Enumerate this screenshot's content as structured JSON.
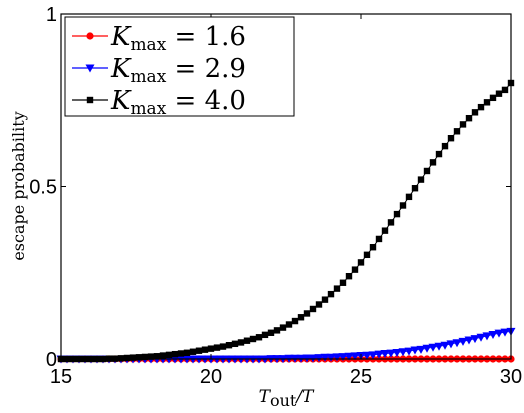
{
  "chart_data": {
    "type": "line",
    "xlabel": "T_out/T",
    "xlabel_main": "T",
    "xlabel_sub": "out",
    "xlabel_tail": "/T",
    "ylabel": "escape probability",
    "xlim": [
      15,
      30
    ],
    "ylim": [
      0,
      1
    ],
    "xticks": [
      "15",
      "20",
      "25",
      "30"
    ],
    "yticks": [
      "0",
      "0.5",
      "1"
    ],
    "grid": false,
    "legend_position": "top-left",
    "x": [
      15.0,
      15.2,
      15.4,
      15.6,
      15.8,
      16.0,
      16.2,
      16.4,
      16.6,
      16.8,
      17.0,
      17.2,
      17.4,
      17.6,
      17.8,
      18.0,
      18.2,
      18.4,
      18.6,
      18.8,
      19.0,
      19.2,
      19.4,
      19.6,
      19.8,
      20.0,
      20.2,
      20.4,
      20.6,
      20.8,
      21.0,
      21.2,
      21.4,
      21.6,
      21.8,
      22.0,
      22.2,
      22.4,
      22.6,
      22.8,
      23.0,
      23.2,
      23.4,
      23.6,
      23.8,
      24.0,
      24.2,
      24.4,
      24.6,
      24.8,
      25.0,
      25.2,
      25.4,
      25.6,
      25.8,
      26.0,
      26.2,
      26.4,
      26.6,
      26.8,
      27.0,
      27.2,
      27.4,
      27.6,
      27.8,
      28.0,
      28.2,
      28.4,
      28.6,
      28.8,
      29.0,
      29.2,
      29.4,
      29.6,
      29.8,
      30.0
    ],
    "series": [
      {
        "name": "K_max = 1.6",
        "name_main": "K",
        "name_sub": "max",
        "name_value": " = 1.6",
        "color": "#ff0000",
        "marker": "circle",
        "values": [
          0,
          0,
          0,
          0,
          0,
          0,
          0,
          0,
          0,
          0,
          0,
          0,
          0,
          0,
          0,
          0,
          0,
          0,
          0,
          0,
          0,
          0,
          0,
          0,
          0,
          0,
          0,
          0,
          0,
          0,
          0,
          0,
          0,
          0,
          0,
          0,
          0,
          0,
          0,
          0,
          0,
          0,
          0,
          0,
          0,
          0,
          0,
          0,
          0,
          0,
          0,
          0,
          0,
          0,
          0,
          0,
          0,
          0,
          0,
          0,
          0,
          0,
          0,
          0,
          0,
          0,
          0,
          0,
          0,
          0,
          0,
          0,
          0,
          0,
          0,
          0
        ]
      },
      {
        "name": "K_max = 2.9",
        "name_main": "K",
        "name_sub": "max",
        "name_value": " = 2.9",
        "color": "#0000ff",
        "marker": "triangle-down",
        "values": [
          0,
          0,
          0,
          0,
          0,
          0,
          0,
          0,
          0,
          0,
          0,
          0,
          0,
          0,
          0,
          0,
          0,
          0,
          0,
          0,
          0,
          0,
          0,
          0,
          0,
          0,
          0,
          0,
          0,
          0,
          0,
          0,
          0,
          0,
          0,
          0.001,
          0.001,
          0.001,
          0.002,
          0.002,
          0.002,
          0.003,
          0.003,
          0.004,
          0.005,
          0.005,
          0.006,
          0.007,
          0.008,
          0.009,
          0.01,
          0.011,
          0.012,
          0.014,
          0.016,
          0.017,
          0.019,
          0.021,
          0.023,
          0.026,
          0.028,
          0.031,
          0.034,
          0.037,
          0.04,
          0.044,
          0.047,
          0.051,
          0.055,
          0.059,
          0.063,
          0.067,
          0.071,
          0.075,
          0.078,
          0.08
        ]
      },
      {
        "name": "K_max = 4.0",
        "name_main": "K",
        "name_sub": "max",
        "name_value": " = 4.0",
        "color": "#000000",
        "marker": "square",
        "values": [
          0,
          0,
          0,
          0,
          0,
          0,
          0,
          0,
          0.001,
          0.001,
          0.002,
          0.003,
          0.004,
          0.005,
          0.006,
          0.007,
          0.008,
          0.01,
          0.012,
          0.014,
          0.016,
          0.018,
          0.021,
          0.024,
          0.027,
          0.03,
          0.033,
          0.036,
          0.04,
          0.044,
          0.048,
          0.053,
          0.058,
          0.063,
          0.07,
          0.076,
          0.083,
          0.091,
          0.1,
          0.11,
          0.121,
          0.132,
          0.145,
          0.158,
          0.172,
          0.188,
          0.204,
          0.221,
          0.24,
          0.259,
          0.28,
          0.302,
          0.324,
          0.348,
          0.372,
          0.396,
          0.42,
          0.445,
          0.47,
          0.495,
          0.52,
          0.545,
          0.57,
          0.594,
          0.617,
          0.64,
          0.66,
          0.68,
          0.698,
          0.715,
          0.73,
          0.744,
          0.757,
          0.769,
          0.78,
          0.8
        ]
      }
    ]
  }
}
